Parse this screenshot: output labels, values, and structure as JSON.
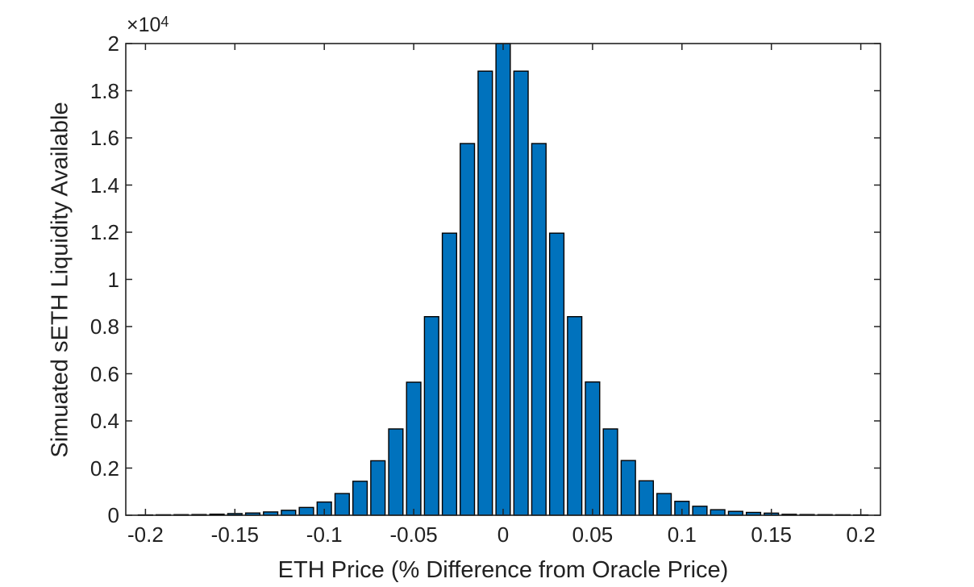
{
  "figure": {
    "background": "#ffffff"
  },
  "chart_data": {
    "type": "bar",
    "subtype": "histogram",
    "title": "",
    "xlabel": "ETH Price (% Difference from Oracle Price)",
    "ylabel": "Simuated sETH Liquidity Available",
    "y_exponent": {
      "base": "×10",
      "exp": "4"
    },
    "bin_width": 0.01,
    "bar_rel_width": 0.8,
    "x": [
      -0.2,
      -0.19,
      -0.18,
      -0.17,
      -0.16,
      -0.15,
      -0.14,
      -0.13,
      -0.12,
      -0.11,
      -0.1,
      -0.09,
      -0.08,
      -0.07,
      -0.06,
      -0.05,
      -0.04,
      -0.03,
      -0.02,
      -0.01,
      0.0,
      0.01,
      0.02,
      0.03,
      0.04,
      0.05,
      0.06,
      0.07,
      0.08,
      0.09,
      0.1,
      0.11,
      0.12,
      0.13,
      0.14,
      0.15,
      0.16,
      0.17,
      0.18,
      0.19,
      0.2
    ],
    "values": [
      15,
      20,
      25,
      30,
      45,
      70,
      95,
      140,
      210,
      330,
      560,
      920,
      1440,
      2310,
      3660,
      5640,
      8420,
      11960,
      15760,
      18830,
      20000,
      18830,
      15760,
      11960,
      8420,
      5650,
      3660,
      2320,
      1460,
      920,
      590,
      380,
      235,
      165,
      120,
      90,
      40,
      30,
      25,
      20,
      15
    ],
    "xlim": [
      -0.211,
      0.211
    ],
    "ylim": [
      0,
      20000
    ],
    "xticks": {
      "values": [
        -0.2,
        -0.15,
        -0.1,
        -0.05,
        0,
        0.05,
        0.1,
        0.15,
        0.2
      ],
      "labels": [
        "-0.2",
        "-0.15",
        "-0.1",
        "-0.05",
        "0",
        "0.05",
        "0.1",
        "0.15",
        "0.2"
      ]
    },
    "yticks": {
      "values": [
        0,
        2000,
        4000,
        6000,
        8000,
        10000,
        12000,
        14000,
        16000,
        18000,
        20000
      ],
      "labels": [
        "0",
        "0.2",
        "0.4",
        "0.6",
        "0.8",
        "1",
        "1.2",
        "1.4",
        "1.6",
        "1.8",
        "2"
      ]
    },
    "grid": false,
    "legend": null,
    "colors": {
      "bar_fill": "#0072BD",
      "bar_edge": "#000000",
      "axis": "#222222",
      "text": "#212121",
      "background": "#ffffff"
    }
  }
}
